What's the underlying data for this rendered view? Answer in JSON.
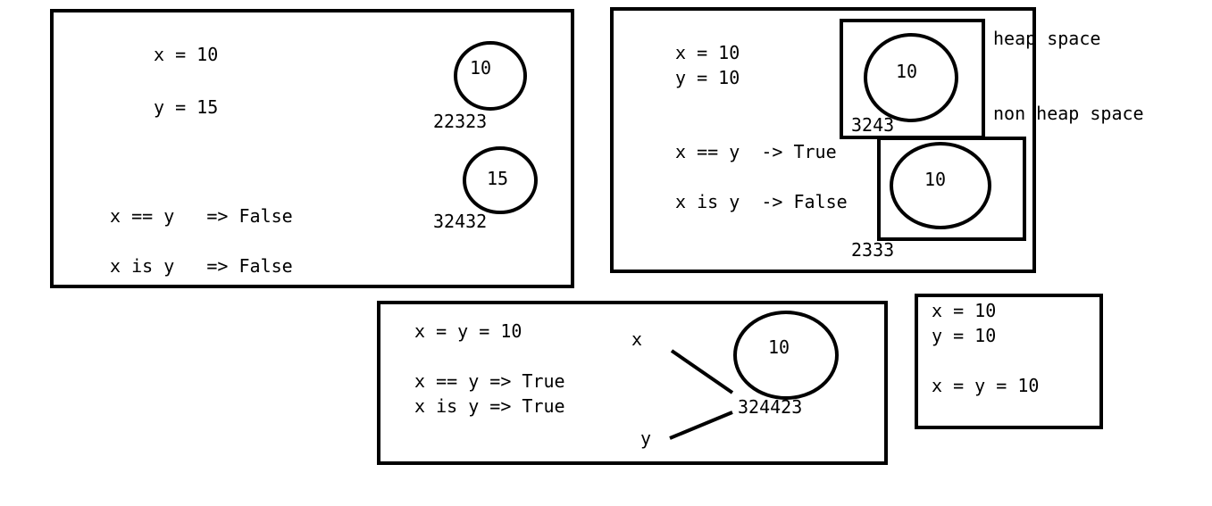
{
  "panel1": {
    "assign_x": "x = 10",
    "assign_y": "y = 15",
    "circle_a": "10",
    "addr_a": "22323",
    "circle_b": "15",
    "addr_b": "32432",
    "eq": "x == y   => False",
    "is": "x is y   => False"
  },
  "panel2": {
    "assign_x": "x = 10",
    "assign_y": "y = 10",
    "eq": "x == y  -> True",
    "is": "x is y  -> False",
    "circle_a": "10",
    "addr_a": "3243",
    "circle_b": "10",
    "addr_b": "2333",
    "heap_label": "heap space",
    "nonheap_label": "non heap space"
  },
  "panel3": {
    "assign": "x = y = 10",
    "eq": "x == y => True",
    "is": "x is y => True",
    "var_x": "x",
    "var_y": "y",
    "circle": "10",
    "addr": "324423"
  },
  "panel4": {
    "line1": "x = 10",
    "line2": "y = 10",
    "line3": "x = y = 10"
  }
}
